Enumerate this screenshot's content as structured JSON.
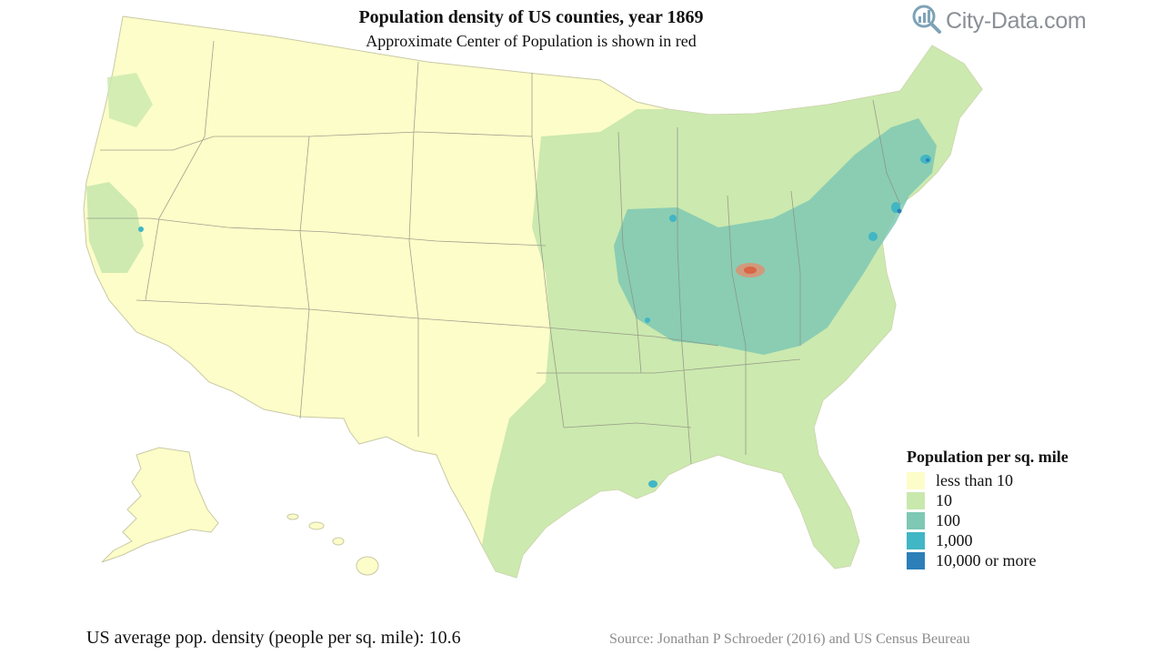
{
  "title": "Population density of US counties, year 1869",
  "subtitle": "Approximate Center of Population is shown in red",
  "logo": {
    "text": "City-Data.com",
    "icon": "magnifier-chart-icon"
  },
  "legend": {
    "title": "Population per sq. mile",
    "items": [
      {
        "label": "less than 10",
        "color": "#fdfdc9"
      },
      {
        "label": "10",
        "color": "#c9e8ae"
      },
      {
        "label": "100",
        "color": "#7ec8b4"
      },
      {
        "label": "1,000",
        "color": "#41b6c4"
      },
      {
        "label": "10,000 or more",
        "color": "#2c7fb8"
      }
    ]
  },
  "center_of_population": {
    "color": "#e8876a"
  },
  "footer": {
    "average": "US average pop. density (people per sq. mile): 10.6",
    "source": "Source: Jonathan P Schroeder (2016) and US Census Beureau"
  }
}
